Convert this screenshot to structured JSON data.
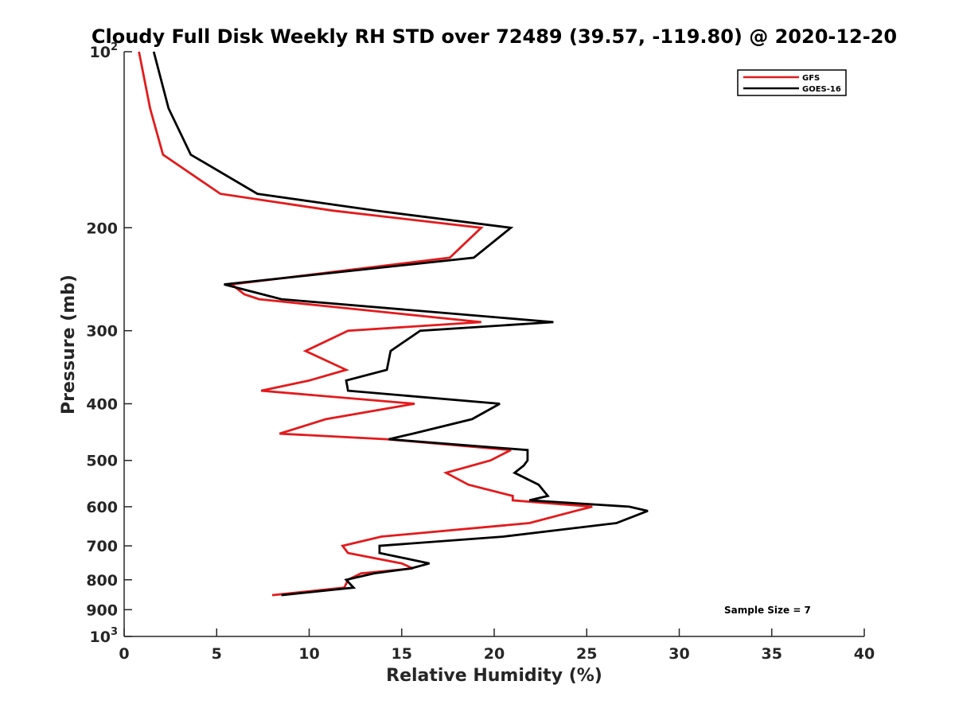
{
  "chart_data": {
    "type": "line",
    "title": "Cloudy Full Disk Weekly RH STD over 72489 (39.57, -119.80) @ 2020-12-20",
    "xlabel": "Relative Humidity (%)",
    "ylabel": "Pressure (mb)",
    "xlim": [
      0,
      40
    ],
    "ylim": [
      100,
      1000
    ],
    "yscale": "log",
    "y_reversed": true,
    "grid": false,
    "legend_position": "top-right",
    "x_ticks": [
      0,
      5,
      10,
      15,
      20,
      25,
      30,
      35,
      40
    ],
    "x_tick_labels": [
      "0",
      "5",
      "10",
      "15",
      "20",
      "25",
      "30",
      "35",
      "40"
    ],
    "y_ticks": [
      100,
      200,
      300,
      400,
      500,
      600,
      700,
      800,
      900,
      1000
    ],
    "y_tick_labels": [
      {
        "base": "10",
        "exp": "2"
      },
      {
        "text": "200"
      },
      {
        "text": "300"
      },
      {
        "text": "400"
      },
      {
        "text": "500"
      },
      {
        "text": "600"
      },
      {
        "text": "700"
      },
      {
        "text": "800"
      },
      {
        "text": "900"
      },
      {
        "base": "10",
        "exp": "3"
      }
    ],
    "series": [
      {
        "name": "GFS",
        "color": "#e41a1c",
        "points": [
          [
            0.8,
            100
          ],
          [
            1.4,
            125
          ],
          [
            2.1,
            150
          ],
          [
            5.2,
            175
          ],
          [
            11.3,
            187
          ],
          [
            19.3,
            200
          ],
          [
            17.6,
            225
          ],
          [
            5.8,
            250
          ],
          [
            6.5,
            260
          ],
          [
            7.3,
            265
          ],
          [
            19.3,
            290
          ],
          [
            12.1,
            300
          ],
          [
            9.8,
            325
          ],
          [
            12.0,
            350
          ],
          [
            10.0,
            365
          ],
          [
            7.4,
            380
          ],
          [
            15.7,
            400
          ],
          [
            10.9,
            425
          ],
          [
            8.4,
            450
          ],
          [
            14.2,
            460
          ],
          [
            20.9,
            480
          ],
          [
            19.8,
            500
          ],
          [
            17.4,
            525
          ],
          [
            18.6,
            550
          ],
          [
            21.0,
            575
          ],
          [
            21.0,
            585
          ],
          [
            25.3,
            600
          ],
          [
            24.4,
            610
          ],
          [
            21.9,
            640
          ],
          [
            13.9,
            675
          ],
          [
            11.8,
            700
          ],
          [
            12.1,
            720
          ],
          [
            15.0,
            750
          ],
          [
            15.6,
            765
          ],
          [
            12.8,
            780
          ],
          [
            12.1,
            800
          ],
          [
            11.9,
            825
          ],
          [
            8.0,
            850
          ]
        ]
      },
      {
        "name": "GOES-16",
        "color": "#000000",
        "points": [
          [
            1.6,
            100
          ],
          [
            2.4,
            125
          ],
          [
            3.6,
            150
          ],
          [
            7.2,
            175
          ],
          [
            13.6,
            187
          ],
          [
            20.9,
            200
          ],
          [
            18.9,
            225
          ],
          [
            5.4,
            250
          ],
          [
            8.5,
            265
          ],
          [
            23.2,
            290
          ],
          [
            16.0,
            300
          ],
          [
            14.4,
            325
          ],
          [
            14.2,
            350
          ],
          [
            12.0,
            365
          ],
          [
            12.1,
            380
          ],
          [
            20.3,
            400
          ],
          [
            18.8,
            425
          ],
          [
            15.6,
            450
          ],
          [
            14.3,
            460
          ],
          [
            21.8,
            480
          ],
          [
            21.8,
            500
          ],
          [
            21.6,
            510
          ],
          [
            21.1,
            525
          ],
          [
            22.4,
            550
          ],
          [
            22.9,
            575
          ],
          [
            21.9,
            585
          ],
          [
            27.3,
            600
          ],
          [
            28.3,
            610
          ],
          [
            26.6,
            640
          ],
          [
            20.5,
            675
          ],
          [
            13.8,
            700
          ],
          [
            13.8,
            720
          ],
          [
            16.5,
            750
          ],
          [
            15.5,
            765
          ],
          [
            13.5,
            780
          ],
          [
            12.0,
            800
          ],
          [
            12.4,
            825
          ],
          [
            8.5,
            850
          ]
        ]
      }
    ],
    "annotations": [
      {
        "text": "Sample Size = 7"
      }
    ]
  }
}
